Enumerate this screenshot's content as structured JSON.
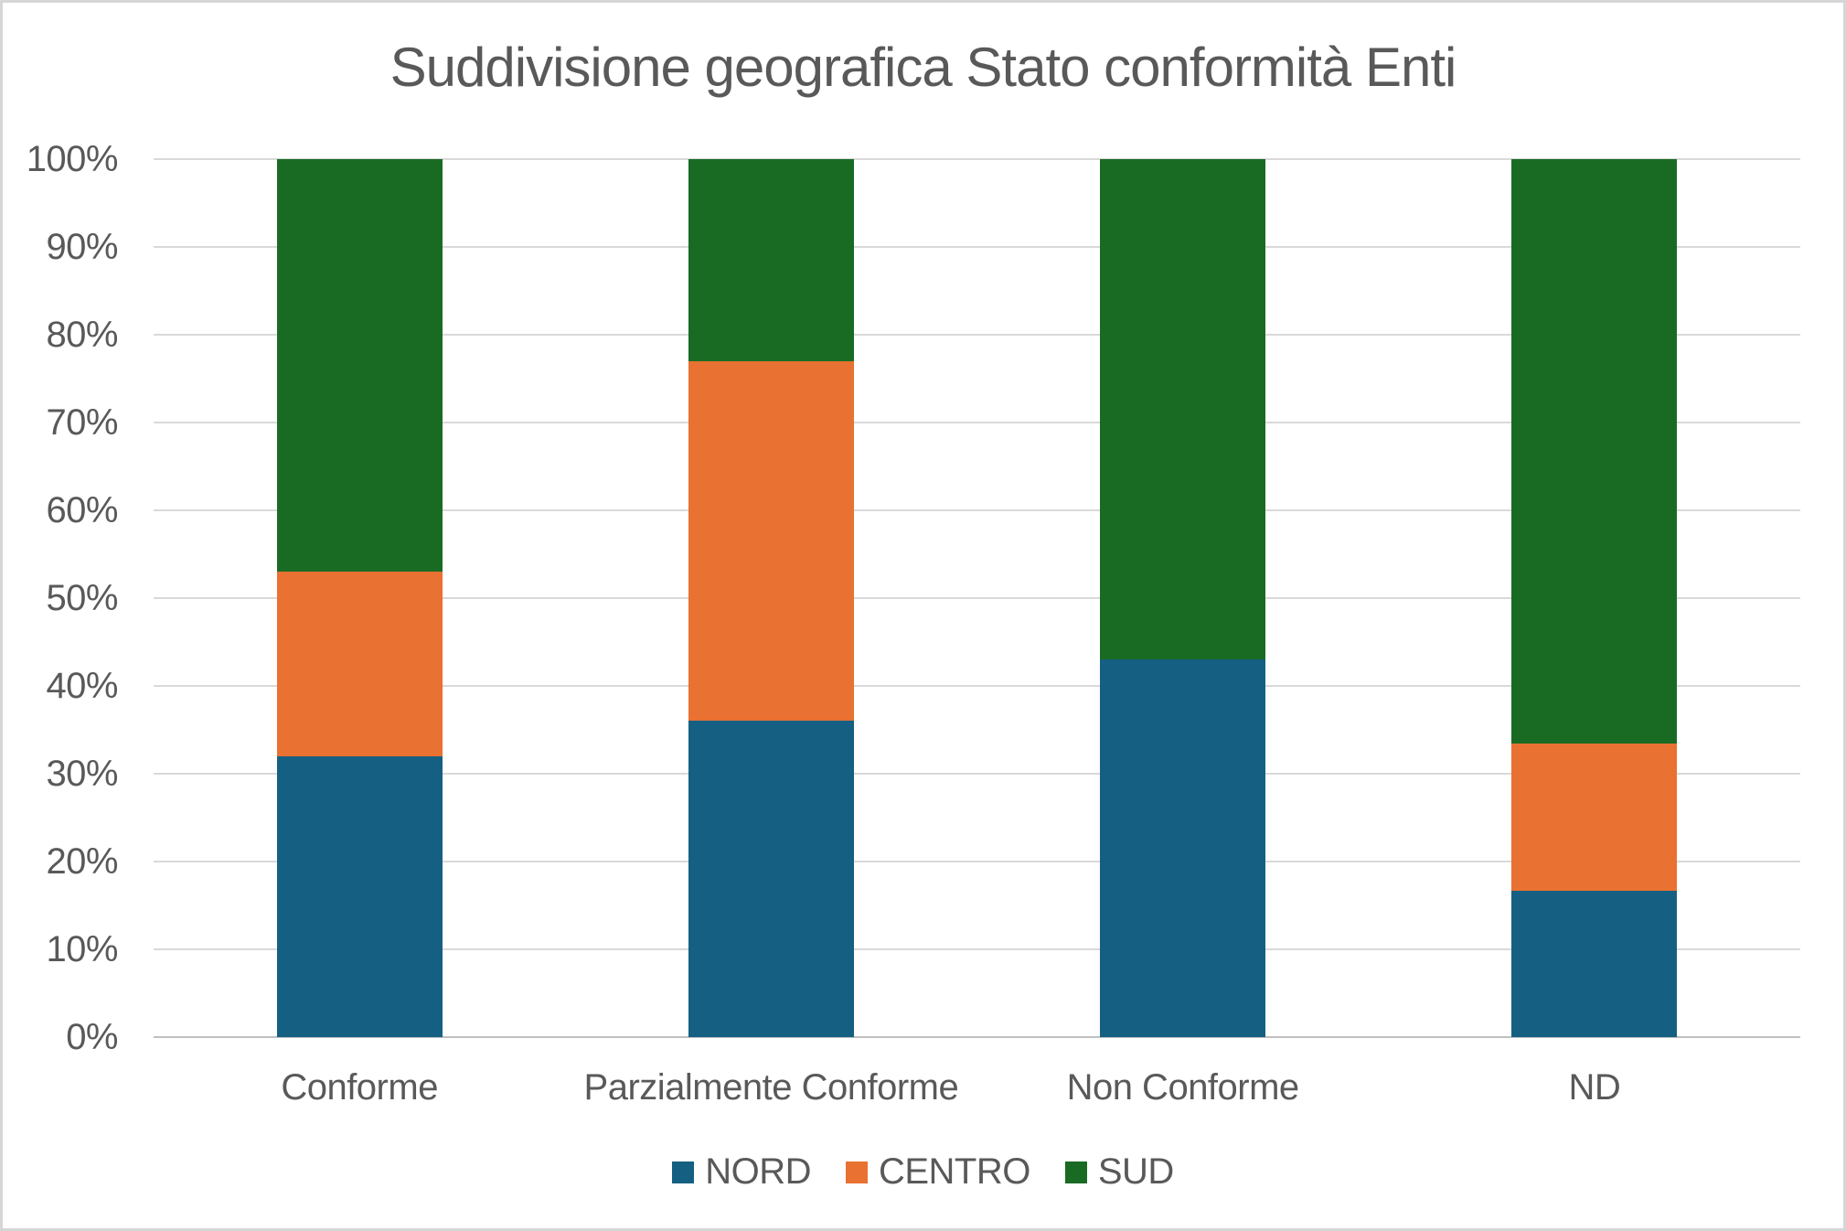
{
  "frame": {
    "title": "Suddivisione geografica Stato conformità Enti"
  },
  "chart_data": {
    "type": "bar",
    "variant": "stacked-100-percent",
    "title": "Suddivisione geografica Stato conformità Enti",
    "categories": [
      "Conforme",
      "Parzialmente Conforme",
      "Non Conforme",
      "ND"
    ],
    "series": [
      {
        "name": "NORD",
        "color": "#156082",
        "values": [
          32,
          36,
          43,
          16.7
        ]
      },
      {
        "name": "CENTRO",
        "color": "#E97132",
        "values": [
          21,
          41,
          0,
          16.7
        ]
      },
      {
        "name": "SUD",
        "color": "#196B24",
        "values": [
          47,
          23,
          57,
          66.6
        ]
      }
    ],
    "xlabel": "",
    "ylabel": "",
    "ylim": [
      0,
      100
    ],
    "yticks": [
      "0%",
      "10%",
      "20%",
      "30%",
      "40%",
      "50%",
      "60%",
      "70%",
      "80%",
      "90%",
      "100%"
    ],
    "grid": true,
    "legend_position": "bottom",
    "colors": {
      "text": "#595959",
      "gridline": "#D9D9D9",
      "axis_line": "#BFBFBF",
      "frame_border": "#D6D6D6",
      "background": "#FFFFFF"
    }
  }
}
